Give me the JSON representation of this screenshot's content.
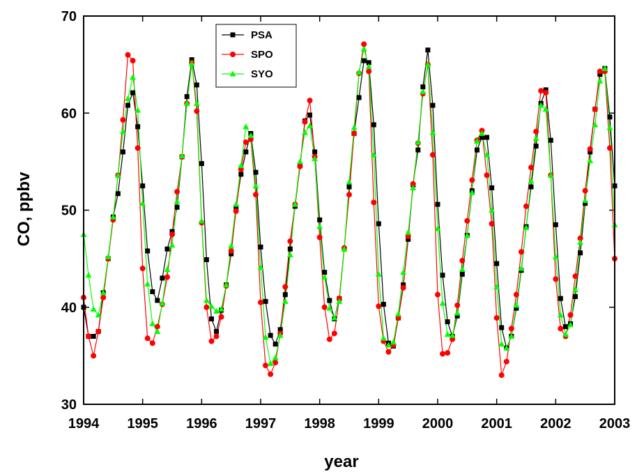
{
  "chart_data": {
    "type": "line",
    "x_label": "year",
    "y_label": "CO, ppbv",
    "xlim": [
      1994,
      2003
    ],
    "xticks": [
      1994,
      1995,
      1996,
      1997,
      1998,
      1999,
      2000,
      2001,
      2002,
      2003
    ],
    "ylim": [
      30,
      70
    ],
    "yticks": [
      30,
      40,
      50,
      60,
      70
    ],
    "legend": "upper left",
    "x": [
      1994,
      1994.083,
      1994.167,
      1994.25,
      1994.333,
      1994.417,
      1994.5,
      1994.583,
      1994.667,
      1994.75,
      1994.833,
      1994.917,
      1995,
      1995.083,
      1995.167,
      1995.25,
      1995.333,
      1995.417,
      1995.5,
      1995.583,
      1995.667,
      1995.75,
      1995.833,
      1995.917,
      1996,
      1996.083,
      1996.167,
      1996.25,
      1996.333,
      1996.417,
      1996.5,
      1996.583,
      1996.667,
      1996.75,
      1996.833,
      1996.917,
      1997,
      1997.083,
      1997.167,
      1997.25,
      1997.333,
      1997.417,
      1997.5,
      1997.583,
      1997.667,
      1997.75,
      1997.833,
      1997.917,
      1998,
      1998.083,
      1998.167,
      1998.25,
      1998.333,
      1998.417,
      1998.5,
      1998.583,
      1998.667,
      1998.75,
      1998.833,
      1998.917,
      1999,
      1999.083,
      1999.167,
      1999.25,
      1999.333,
      1999.417,
      1999.5,
      1999.583,
      1999.667,
      1999.75,
      1999.833,
      1999.917,
      2000,
      2000.083,
      2000.167,
      2000.25,
      2000.333,
      2000.417,
      2000.5,
      2000.583,
      2000.667,
      2000.75,
      2000.833,
      2000.917,
      2001,
      2001.083,
      2001.167,
      2001.25,
      2001.333,
      2001.417,
      2001.5,
      2001.583,
      2001.667,
      2001.75,
      2001.833,
      2001.917,
      2002,
      2002.083,
      2002.167,
      2002.25,
      2002.333,
      2002.417,
      2002.5,
      2002.583,
      2002.667,
      2002.75,
      2002.833,
      2002.917,
      2003
    ],
    "series": [
      {
        "name": "PSA",
        "color": "#000000",
        "marker": "square",
        "values": [
          40,
          37,
          37,
          37.5,
          41.5,
          45,
          49.3,
          51.7,
          56,
          60.8,
          62.1,
          58.6,
          52.5,
          45.8,
          41.6,
          40.7,
          43,
          46,
          47.8,
          50.3,
          55.5,
          61.7,
          65.5,
          62.9,
          54.8,
          44.9,
          38.8,
          37.5,
          39.7,
          42.3,
          45.5,
          50.3,
          53.7,
          56,
          57.9,
          53.9,
          46.2,
          40.6,
          37.1,
          36.2,
          37.7,
          41.3,
          46,
          50.4,
          54.6,
          59.2,
          59.8,
          56,
          49,
          43.6,
          40.7,
          38.8,
          40.9,
          46,
          52.4,
          57.9,
          61.6,
          65.4,
          65.2,
          58.8,
          48.6,
          40.3,
          36.3,
          36,
          38.9,
          42.3,
          47,
          52.6,
          56.2,
          62.7,
          66.5,
          60.8,
          50.6,
          43.3,
          38.5,
          37,
          39.1,
          43.4,
          47.4,
          52,
          56.2,
          57.5,
          57.5,
          52.3,
          44.5,
          37.9,
          35.8,
          37,
          39.9,
          43.8,
          48.3,
          52.4,
          56.6,
          61,
          62.4,
          57.2,
          48.5,
          40.9,
          38,
          38.3,
          41.1,
          45.6,
          50.7,
          56,
          60.4,
          64,
          64.6,
          59.6,
          52.5
        ]
      },
      {
        "name": "SPO",
        "color": "#ff0000",
        "marker": "circle",
        "values": [
          41,
          37,
          35,
          37.5,
          41,
          45,
          49,
          53.6,
          59.3,
          66,
          65.4,
          56.4,
          44,
          36.8,
          36.3,
          38,
          40.3,
          43.1,
          47.5,
          51.9,
          55.5,
          61,
          65.2,
          60.2,
          48.7,
          40,
          36.5,
          37,
          39,
          42.2,
          45.8,
          49.9,
          54.2,
          57,
          57.3,
          51.6,
          40.5,
          34,
          33.1,
          34.3,
          37.3,
          42.1,
          46.8,
          50.6,
          54.5,
          59.1,
          61.3,
          55.5,
          47.2,
          40,
          36.7,
          37.3,
          40.9,
          46.1,
          51.6,
          57.9,
          64.1,
          67.1,
          64.3,
          50.8,
          40.1,
          36.5,
          35.4,
          36.1,
          38.9,
          42,
          47.3,
          52.7,
          56.9,
          62,
          65,
          55.7,
          41.3,
          35.2,
          35.3,
          36.7,
          40.2,
          44.8,
          48.9,
          53.1,
          57.2,
          58.2,
          53.6,
          48.6,
          38.9,
          33,
          34.4,
          37.8,
          41.3,
          45.7,
          50.4,
          54.4,
          58.1,
          62.3,
          62.1,
          53.6,
          42.9,
          37.8,
          37,
          39.2,
          43.2,
          47.1,
          52,
          56.3,
          60.4,
          64.3,
          64.3,
          56.4,
          45
        ]
      },
      {
        "name": "SYO",
        "color": "#00ff00",
        "marker": "triangle",
        "values": [
          47.5,
          43.3,
          39.8,
          39.2,
          41.5,
          45.2,
          49.3,
          53.6,
          58.1,
          61.5,
          63.7,
          60.3,
          50.7,
          42.4,
          38.3,
          37.5,
          40.4,
          43.9,
          46.4,
          50.9,
          55.6,
          61,
          65.1,
          61,
          48.9,
          40.7,
          40.1,
          39.6,
          39.8,
          42.3,
          46.3,
          50.6,
          54.6,
          58.6,
          57.7,
          52.5,
          44.1,
          36.9,
          34.2,
          34.8,
          37.1,
          40.6,
          45.4,
          50.6,
          55,
          58,
          58.7,
          55.3,
          48.3,
          43.1,
          39.9,
          38.9,
          40.6,
          46,
          52.9,
          58.5,
          64.2,
          66.6,
          64.8,
          55.7,
          43.4,
          36.8,
          36.1,
          36.4,
          39.3,
          43.6,
          47.7,
          52.3,
          57,
          62.2,
          65,
          58,
          48.1,
          40.4,
          37.2,
          37.1,
          39.4,
          43.9,
          47.4,
          51.8,
          57.1,
          57.9,
          55.7,
          50,
          42.1,
          36.2,
          35.8,
          37,
          40.2,
          44,
          48.2,
          53,
          57.4,
          60.8,
          60.4,
          53.6,
          45.2,
          39.2,
          37.2,
          38.2,
          41.8,
          46.7,
          51,
          55.1,
          58.8,
          63.3,
          64.6,
          58.5,
          48.5
        ]
      }
    ]
  }
}
